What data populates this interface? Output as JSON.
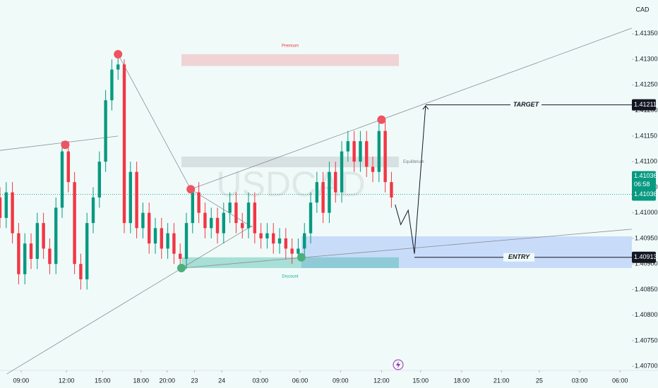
{
  "chart_data": {
    "type": "candlestick",
    "symbol": "USDCAD",
    "currency": "CAD",
    "up_color": "#089981",
    "down_color": "#f23645",
    "open": [
      1.4103,
      1.4099,
      1.4104,
      1.4096,
      1.4088,
      1.4094,
      1.4091,
      1.4098,
      1.4093,
      1.409,
      1.4101,
      1.4112,
      1.4106,
      1.409,
      1.4087,
      1.4098,
      1.4103,
      1.411,
      1.4122,
      1.4128,
      1.4129,
      1.4098,
      1.4108,
      1.4097,
      1.41,
      1.4094,
      1.4097,
      1.4093,
      1.4096,
      1.4092,
      1.4091,
      1.4098,
      1.4104,
      1.41,
      1.4097,
      1.4099,
      1.4096,
      1.41,
      1.4102,
      1.4098,
      1.4097,
      1.4102,
      1.4096,
      1.4095,
      1.4096,
      1.4094,
      1.4095,
      1.4093,
      1.4092,
      1.4093,
      1.4096,
      1.4102,
      1.4106,
      1.41,
      1.4108,
      1.4104,
      1.4112,
      1.4114,
      1.411,
      1.4114,
      1.4109,
      1.4108,
      1.4116,
      1.4106
    ],
    "high": [
      1.4105,
      1.4106,
      1.4106,
      1.4098,
      1.4096,
      1.4096,
      1.41,
      1.41,
      1.4095,
      1.4103,
      1.4114,
      1.4114,
      1.4108,
      1.4092,
      1.41,
      1.4105,
      1.4112,
      1.4124,
      1.413,
      1.4131,
      1.413,
      1.411,
      1.411,
      1.4102,
      1.4102,
      1.4099,
      1.4099,
      1.4098,
      1.4098,
      1.4094,
      1.41,
      1.4105,
      1.4106,
      1.4102,
      1.4101,
      1.4101,
      1.4102,
      1.4104,
      1.4104,
      1.41,
      1.4104,
      1.4104,
      1.4098,
      1.4098,
      1.4098,
      1.4097,
      1.4097,
      1.4095,
      1.4095,
      1.4098,
      1.4104,
      1.4108,
      1.4108,
      1.411,
      1.411,
      1.4114,
      1.4116,
      1.4116,
      1.4116,
      1.4116,
      1.4111,
      1.4118,
      1.4118,
      1.4108
    ],
    "low": [
      1.4097,
      1.4097,
      1.4094,
      1.4086,
      1.4086,
      1.4089,
      1.4089,
      1.4091,
      1.4088,
      1.4088,
      1.4099,
      1.4104,
      1.4088,
      1.4085,
      1.4085,
      1.4096,
      1.4101,
      1.4108,
      1.412,
      1.4126,
      1.4096,
      1.4096,
      1.4095,
      1.4095,
      1.4092,
      1.4092,
      1.4091,
      1.4091,
      1.409,
      1.4089,
      1.4089,
      1.4096,
      1.4098,
      1.4095,
      1.4095,
      1.4094,
      1.4094,
      1.4098,
      1.4096,
      1.4095,
      1.4095,
      1.4094,
      1.4093,
      1.4093,
      1.4092,
      1.4092,
      1.4091,
      1.409,
      1.4091,
      1.4091,
      1.4094,
      1.41,
      1.4098,
      1.4098,
      1.4102,
      1.4102,
      1.411,
      1.4108,
      1.4108,
      1.4107,
      1.4106,
      1.4106,
      1.4104,
      1.4101
    ],
    "close": [
      1.4099,
      1.4104,
      1.4096,
      1.4088,
      1.4094,
      1.4091,
      1.4098,
      1.4093,
      1.409,
      1.4101,
      1.4112,
      1.4106,
      1.409,
      1.4087,
      1.4098,
      1.4103,
      1.411,
      1.4122,
      1.4128,
      1.4129,
      1.4098,
      1.4108,
      1.4097,
      1.41,
      1.4094,
      1.4097,
      1.4093,
      1.4096,
      1.4092,
      1.4091,
      1.4098,
      1.4104,
      1.41,
      1.4097,
      1.4099,
      1.4096,
      1.41,
      1.4102,
      1.4098,
      1.4097,
      1.4102,
      1.4096,
      1.4095,
      1.4096,
      1.4094,
      1.4095,
      1.4093,
      1.4092,
      1.4093,
      1.4096,
      1.4102,
      1.4106,
      1.41,
      1.4108,
      1.4104,
      1.4112,
      1.4114,
      1.411,
      1.4114,
      1.4109,
      1.4108,
      1.4116,
      1.4106,
      1.4103
    ],
    "xlim": [
      0,
      101.7
    ],
    "ylim": [
      1.40692,
      1.41416
    ],
    "grid": false,
    "xticks": [
      {
        "value": 3.4,
        "label": "09:00"
      },
      {
        "value": 10.7,
        "label": "12:00"
      },
      {
        "value": 16.5,
        "label": "15:00"
      },
      {
        "value": 22.7,
        "label": "18:00"
      },
      {
        "value": 26.9,
        "label": "20:00"
      },
      {
        "value": 31.3,
        "label": "23"
      },
      {
        "value": 35.7,
        "label": "24"
      },
      {
        "value": 41.9,
        "label": "03:00"
      },
      {
        "value": 48.3,
        "label": "06:00"
      },
      {
        "value": 54.8,
        "label": "09:00"
      },
      {
        "value": 61.4,
        "label": "12:00"
      },
      {
        "value": 67.7,
        "label": "15:00"
      },
      {
        "value": 74.3,
        "label": "18:00"
      },
      {
        "value": 80.7,
        "label": "21:00"
      },
      {
        "value": 86.8,
        "label": "25"
      },
      {
        "value": 93.3,
        "label": "03:00"
      },
      {
        "value": 99.8,
        "label": "06:00"
      }
    ],
    "yticks": [
      {
        "value": 1.407,
        "label": "1.40700"
      },
      {
        "value": 1.4075,
        "label": "1.40750"
      },
      {
        "value": 1.408,
        "label": "1.40800"
      },
      {
        "value": 1.4085,
        "label": "1.40850"
      },
      {
        "value": 1.409,
        "label": "1.40900"
      },
      {
        "value": 1.4095,
        "label": "1.40950"
      },
      {
        "value": 1.41,
        "label": "1.41000"
      },
      {
        "value": 1.4105,
        "label": "1.41050"
      },
      {
        "value": 1.411,
        "label": "1.41100"
      },
      {
        "value": 1.4115,
        "label": "1.41150"
      },
      {
        "value": 1.412,
        "label": "1.41200"
      },
      {
        "value": 1.4125,
        "label": "1.41250"
      },
      {
        "value": 1.413,
        "label": "1.41300"
      },
      {
        "value": 1.4135,
        "label": "1.41350"
      }
    ],
    "last_price": 1.41036,
    "countdown": "06:58",
    "target": {
      "label": "TARGET",
      "price": 1.41211,
      "x": 68.5
    },
    "entry": {
      "label": "ENTRY",
      "price": 1.40913,
      "x": 66.7
    },
    "zones": [
      {
        "label": "Premium",
        "top": 1.4131,
        "bottom": 1.41287,
        "x0": 29.2,
        "x1": 64.2,
        "color": "#f23645"
      },
      {
        "label": "Equilibrium",
        "top": 1.4111,
        "bottom": 1.41089,
        "x0": 29.2,
        "x1": 64.2,
        "color": "#787b86"
      },
      {
        "label": "Discount",
        "top": 1.40913,
        "bottom": 1.40892,
        "x0": 29.2,
        "x1": 64.2,
        "color": "#22ab94"
      }
    ],
    "entry_zone": {
      "top": 1.40954,
      "bottom": 1.40892,
      "x0": 48.5,
      "x1": 101.7,
      "color": "#2962ff"
    },
    "trend_lines": [
      {
        "x": [
          0,
          19
        ],
        "y": [
          1.41122,
          1.4115
        ]
      },
      {
        "x": [
          19,
          30.7
        ],
        "y": [
          1.4131,
          1.41046
        ]
      },
      {
        "x": [
          30.7,
          101.7
        ],
        "y": [
          1.41046,
          1.41361
        ]
      },
      {
        "x": [
          1.1,
          40.6
        ],
        "y": [
          1.40685,
          1.40975
        ]
      },
      {
        "x": [
          29.2,
          101.7
        ],
        "y": [
          1.40892,
          1.40968
        ]
      },
      {
        "x": [
          30.7,
          40.6
        ],
        "y": [
          1.41046,
          1.40972
        ]
      }
    ],
    "projection": {
      "x": [
        63.6,
        64.5,
        65.7,
        66.7,
        68.5
      ],
      "y": [
        1.41016,
        1.40977,
        1.41005,
        1.4092,
        1.41209
      ]
    },
    "swing_highs": {
      "x": [
        10.5,
        19,
        30.7,
        61.4
      ],
      "y": [
        1.41133,
        1.4131,
        1.41046,
        1.41182
      ]
    },
    "swing_lows": {
      "x": [
        29.2,
        48.5
      ],
      "y": [
        1.40892,
        1.40913
      ]
    }
  }
}
